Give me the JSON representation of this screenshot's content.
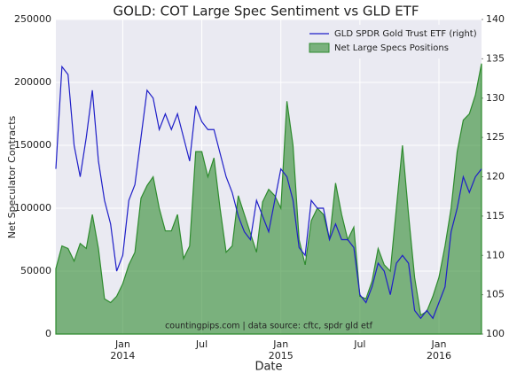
{
  "chart_data": {
    "type": "area-line",
    "title": "GOLD: COT Large Spec Sentiment vs GLD ETF",
    "x_label": "Date",
    "y_label": "Net Speculator Contracts",
    "annotation": "countingpips.com | data source: cftc, spdr gld etf",
    "categories": [
      null,
      null,
      null,
      null,
      null,
      null,
      null,
      null,
      null,
      null,
      null,
      "Jan 2014",
      null,
      null,
      null,
      null,
      null,
      null,
      null,
      null,
      null,
      null,
      null,
      null,
      "Jul",
      null,
      null,
      null,
      null,
      null,
      null,
      null,
      null,
      null,
      null,
      null,
      null,
      "Jan 2015",
      null,
      null,
      null,
      null,
      null,
      null,
      null,
      null,
      null,
      null,
      null,
      null,
      "Jul",
      null,
      null,
      null,
      null,
      null,
      null,
      null,
      null,
      null,
      null,
      null,
      null,
      "Jan 2016",
      null,
      null,
      null,
      null,
      null,
      null,
      null
    ],
    "series": [
      {
        "name": "GLD SPDR Gold Trust ETF (right)",
        "color": "#1f1fc8",
        "axis": "y2",
        "values": [
          121,
          134,
          133,
          124,
          120,
          125,
          131,
          122,
          117,
          114,
          108,
          110,
          117,
          119,
          125,
          131,
          130,
          126,
          128,
          126,
          128,
          125,
          122,
          129,
          127,
          126,
          126,
          123,
          120,
          118,
          115,
          113,
          112,
          117,
          115,
          113,
          117,
          121,
          120,
          117,
          111,
          110,
          117,
          116,
          116,
          112,
          114,
          112,
          112,
          111,
          105,
          104,
          106,
          109,
          108,
          105,
          109,
          110,
          109,
          103,
          102,
          103,
          102,
          104,
          106,
          113,
          116,
          120,
          118,
          120,
          121
        ]
      },
      {
        "name": "Net Large Specs Positions",
        "color": "#2e8b2e",
        "values": [
          52000,
          70000,
          68000,
          58000,
          72000,
          68000,
          95000,
          68000,
          28000,
          25000,
          30000,
          40000,
          55000,
          65000,
          108000,
          118000,
          125000,
          100000,
          82000,
          82000,
          95000,
          60000,
          70000,
          145000,
          145000,
          125000,
          140000,
          100000,
          65000,
          70000,
          110000,
          95000,
          80000,
          65000,
          105000,
          115000,
          110000,
          100000,
          185000,
          150000,
          75000,
          55000,
          90000,
          100000,
          95000,
          75000,
          120000,
          95000,
          75000,
          85000,
          30000,
          28000,
          42000,
          68000,
          55000,
          50000,
          100000,
          150000,
          95000,
          45000,
          15000,
          18000,
          30000,
          45000,
          70000,
          100000,
          145000,
          170000,
          175000,
          190000,
          215000
        ]
      }
    ],
    "ylim": [
      0,
      250000
    ],
    "yticks": [
      0,
      50000,
      100000,
      150000,
      200000,
      250000
    ],
    "y2lim": [
      100,
      140
    ],
    "y2ticks": [
      100,
      105,
      110,
      115,
      120,
      125,
      130,
      135,
      140
    ],
    "grid": true,
    "legend": "upper right"
  }
}
